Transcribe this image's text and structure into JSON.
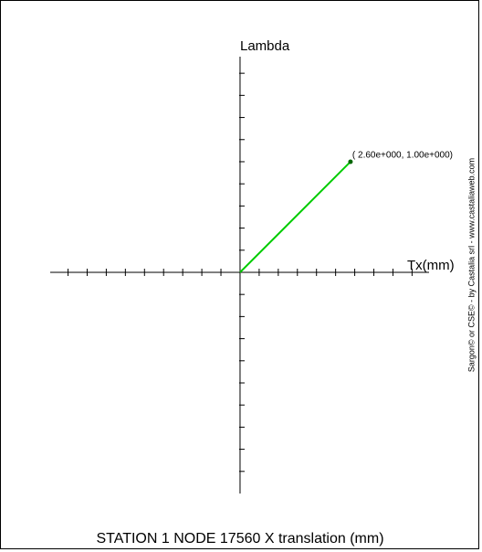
{
  "chart_data": {
    "type": "line",
    "title": "STATION 1 NODE 17560  X translation (mm)",
    "x_label": "Tx(mm)",
    "y_label": "Lambda",
    "credit": "Sargon© or CSE© - by Castalia srl - www.castaliaweb.com",
    "series": [
      {
        "color": "#00cc00",
        "x": [
          0,
          2.6
        ],
        "values": [
          0,
          1.0
        ],
        "value_labels": [
          null,
          "( 2.60e+000,  1.00e+000)"
        ]
      }
    ],
    "xlim": [
      -4.47,
      4.45
    ],
    "xticks": [
      -4.05,
      -3.6,
      -3.15,
      -2.7,
      -2.25,
      -1.8,
      -1.35,
      -0.9,
      -0.45,
      0.45,
      0.9,
      1.35,
      1.8,
      2.25,
      2.7,
      3.15,
      3.6,
      4.05
    ],
    "ylim": [
      -2.0,
      1.95
    ],
    "yticks": [
      -1.8,
      -1.6,
      -1.4,
      -1.2,
      -1.0,
      -0.8,
      -0.6,
      -0.4,
      -0.2,
      0.2,
      0.4,
      0.6,
      0.8,
      1.0,
      1.2,
      1.4,
      1.6,
      1.8
    ]
  }
}
